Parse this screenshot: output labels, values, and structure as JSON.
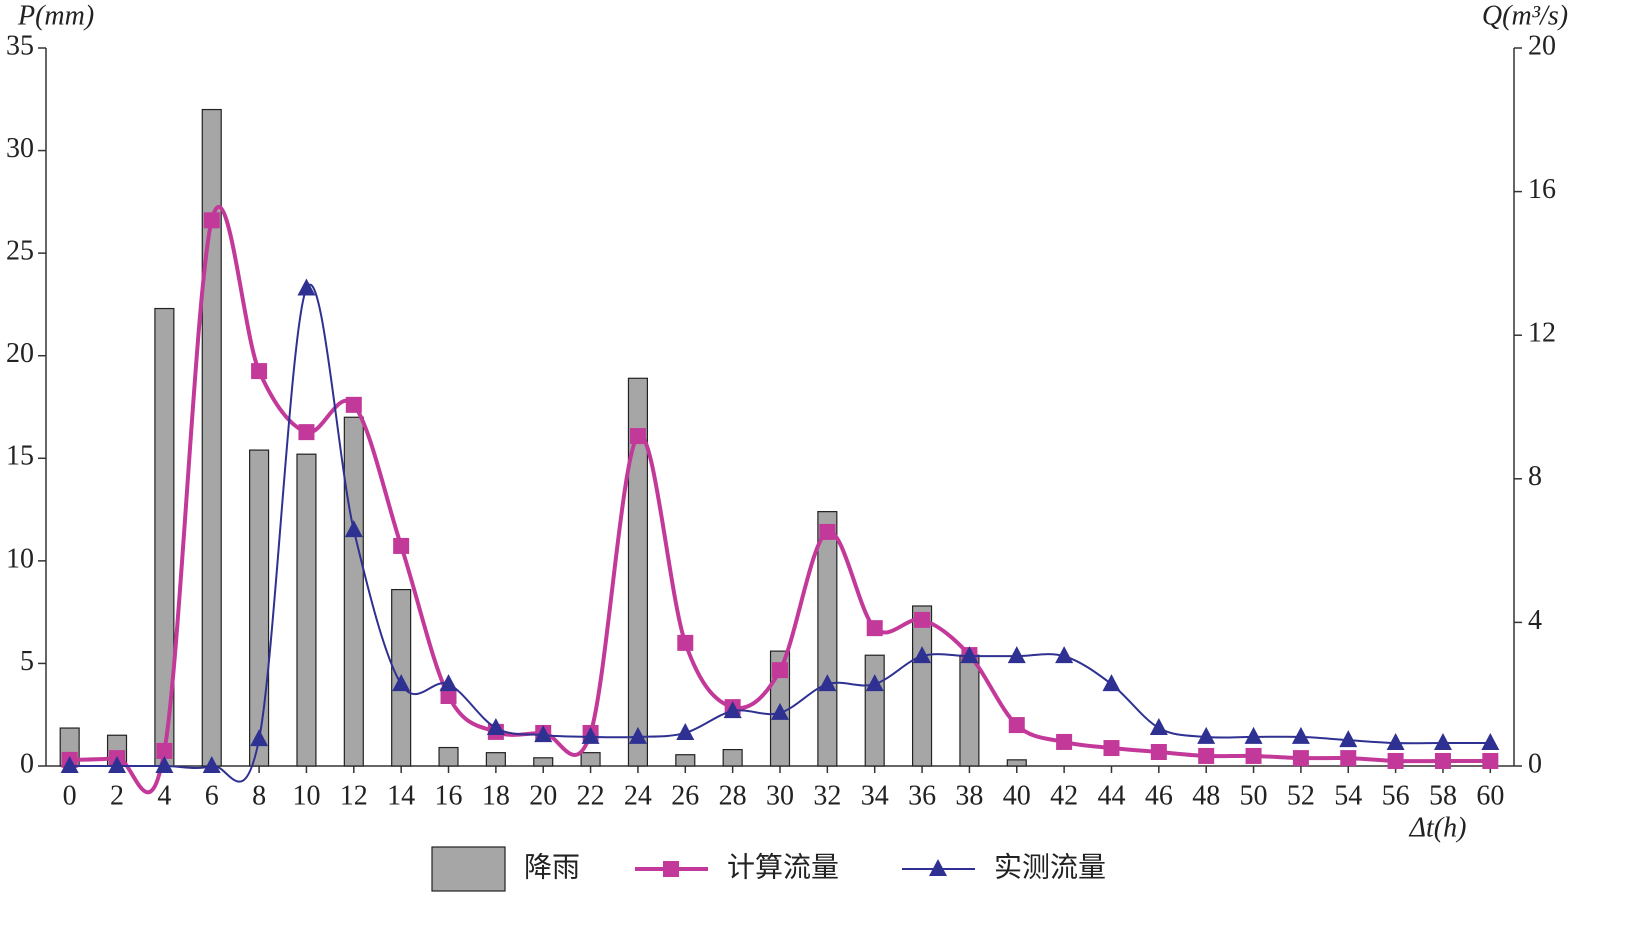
{
  "chart_data": {
    "type": "combo",
    "ylabel": "P(mm)",
    "y2label": "Q(m³/s)",
    "xlabel": "Δt(h)",
    "x": [
      0,
      2,
      4,
      6,
      8,
      10,
      12,
      14,
      16,
      18,
      20,
      22,
      24,
      26,
      28,
      30,
      32,
      34,
      36,
      38,
      40,
      42,
      44,
      46,
      48,
      50,
      52,
      54,
      56,
      58,
      60
    ],
    "xlim": [
      -1,
      61
    ],
    "xticks": [
      0,
      2,
      4,
      6,
      8,
      10,
      12,
      14,
      16,
      18,
      20,
      22,
      24,
      26,
      28,
      30,
      32,
      34,
      36,
      38,
      40,
      42,
      44,
      46,
      48,
      50,
      52,
      54,
      56,
      58,
      60
    ],
    "ylim": [
      0,
      35
    ],
    "yticks": [
      0,
      5,
      10,
      15,
      20,
      25,
      30,
      35
    ],
    "y2lim": [
      0,
      20
    ],
    "y2ticks": [
      0,
      4,
      8,
      12,
      16,
      20
    ],
    "series": [
      {
        "name": "降雨",
        "type": "bar",
        "color": "#a6a6a6",
        "values": [
          1.85,
          1.5,
          22.3,
          32,
          15.4,
          15.2,
          17,
          8.6,
          0.9,
          0.65,
          0.4,
          0.65,
          18.9,
          0.55,
          0.8,
          5.6,
          12.4,
          5.4,
          7.8,
          5.4,
          0.3,
          null,
          null,
          null,
          null,
          null,
          null,
          null,
          null,
          null,
          null
        ]
      },
      {
        "name": "计算流量",
        "type": "line",
        "marker": "square",
        "axis": "y2",
        "color": "#c2399a",
        "values": [
          0.17,
          0.22,
          0.42,
          15.2,
          11.0,
          9.3,
          10.06,
          6.13,
          1.95,
          0.95,
          0.92,
          0.92,
          9.19,
          3.43,
          1.64,
          2.67,
          6.52,
          3.84,
          4.07,
          3.09,
          1.14,
          0.67,
          0.5,
          0.39,
          0.28,
          0.28,
          0.22,
          0.22,
          0.14,
          0.14,
          0.14
        ]
      },
      {
        "name": "实测流量",
        "type": "line",
        "marker": "triangle",
        "axis": "y2",
        "color": "#2e3192",
        "values": [
          0,
          0,
          0,
          0,
          0.75,
          13.3,
          6.57,
          2.28,
          2.28,
          1.06,
          0.86,
          0.81,
          0.81,
          0.92,
          1.53,
          1.48,
          2.28,
          2.28,
          3.06,
          3.06,
          3.06,
          3.06,
          2.28,
          1.06,
          0.81,
          0.81,
          0.81,
          0.72,
          0.64,
          0.64,
          0.64
        ]
      }
    ]
  }
}
